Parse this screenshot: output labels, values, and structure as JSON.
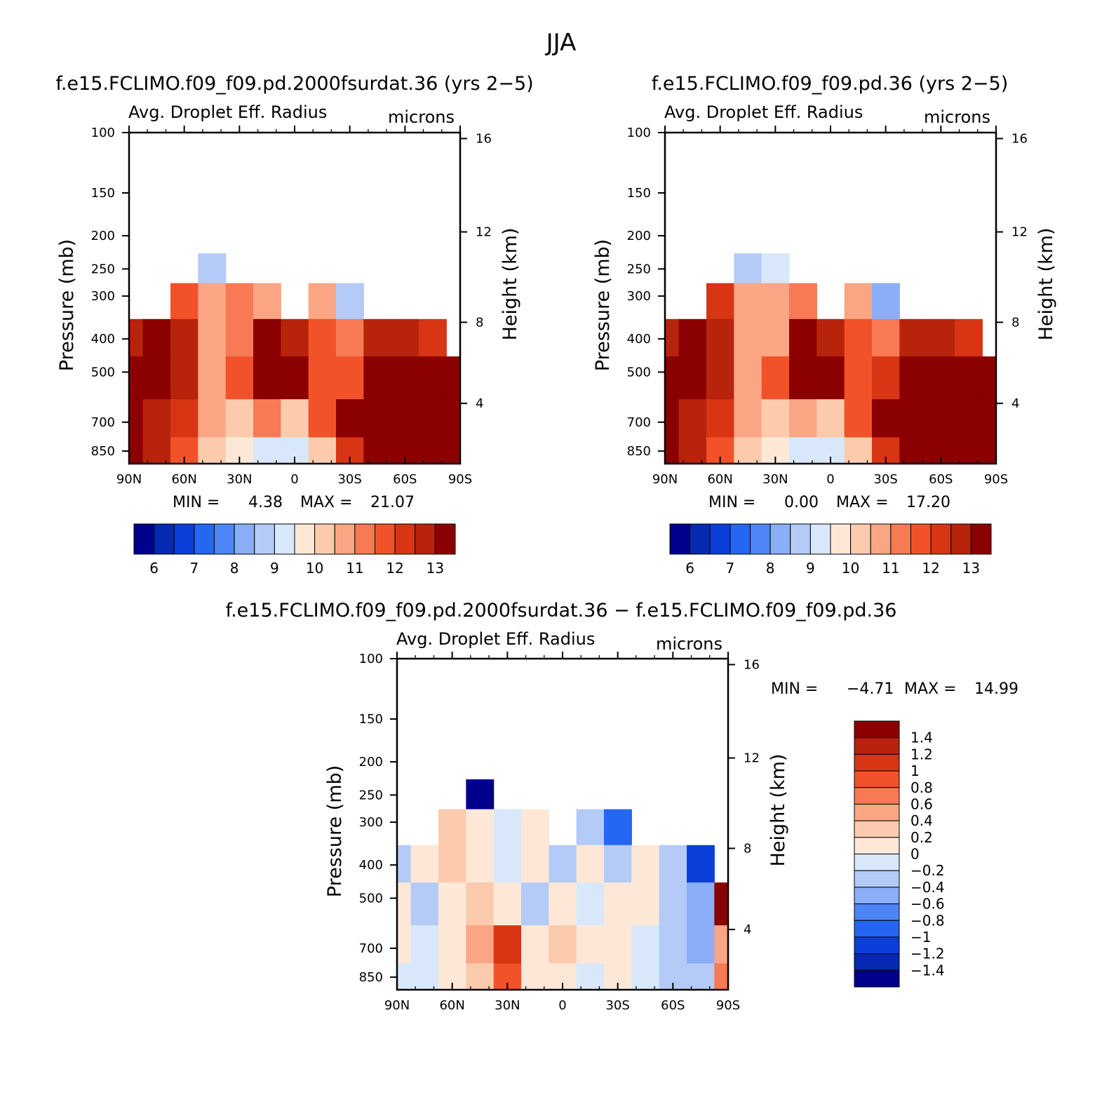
{
  "figure_title": "JJA",
  "colors": {
    "abs_scale": [
      "#00008c",
      "#0529b0",
      "#0c3fd9",
      "#2566f2",
      "#4d85f7",
      "#8aaef7",
      "#b4cbf8",
      "#d8e8fa",
      "#fde8d8",
      "#fccbae",
      "#faa684",
      "#f77a55",
      "#f25229",
      "#d83515",
      "#b8230c",
      "#8b0000"
    ],
    "diff_scale": [
      "#00008c",
      "#0529b0",
      "#0c3fd9",
      "#2566f2",
      "#4d85f7",
      "#8aaef7",
      "#b4cbf8",
      "#d8e8fa",
      "#fde8d8",
      "#fccbae",
      "#faa684",
      "#f77a55",
      "#f25229",
      "#d83515",
      "#b8230c",
      "#8b0000"
    ]
  },
  "chart_data": [
    {
      "type": "heatmap",
      "id": "p1",
      "title": "f.e15.FCLIMO.f09_f09.pd.2000fsurdat.36 (yrs 2−5)",
      "subtitle": "Avg. Droplet Eff. Radius",
      "units": "microns",
      "xlabel": "",
      "ylabel": "Pressure (mb)",
      "y2label": "Height (km)",
      "xticks": [
        "90N",
        "60N",
        "30N",
        "0",
        "30S",
        "60S",
        "90S"
      ],
      "xlim": [
        90,
        -90
      ],
      "yticks": [
        "100",
        "150",
        "200",
        "250",
        "300",
        "400",
        "500",
        "700",
        "850"
      ],
      "y2ticks": [
        "16",
        "12",
        "8",
        "4"
      ],
      "ylim": [
        100,
        925
      ],
      "min_label": "MIN =",
      "min_value": "4.38",
      "max_label": "MAX =",
      "max_value": "21.07",
      "colorbar_labels": [
        "6",
        "7",
        "8",
        "9",
        "10",
        "11",
        "12",
        "13"
      ],
      "field": {
        "lat": [
          90,
          75,
          60,
          45,
          30,
          15,
          0,
          -15,
          -30,
          -45,
          -60,
          -75,
          -90
        ],
        "levels_mb": [
          250,
          300,
          400,
          500,
          700,
          850
        ],
        "values": [
          [
            null,
            null,
            null,
            8,
            null,
            null,
            null,
            null,
            null,
            null,
            null,
            null,
            null
          ],
          [
            null,
            null,
            11,
            10,
            10.5,
            10,
            null,
            10,
            8,
            null,
            null,
            null,
            null
          ],
          [
            12,
            12.5,
            12,
            10,
            10.5,
            12.5,
            12,
            11,
            10.5,
            12,
            12,
            11.5,
            null
          ],
          [
            13,
            13,
            12,
            10,
            11,
            12.5,
            12.5,
            11,
            11,
            13,
            13.5,
            13.5,
            13
          ],
          [
            13,
            12,
            11.5,
            10,
            9.5,
            10.5,
            9.5,
            11,
            12.5,
            13.5,
            13.5,
            13.5,
            13.5
          ],
          [
            13,
            12,
            11,
            9.5,
            9,
            8.5,
            8.5,
            9.5,
            11.5,
            13,
            13.5,
            13.5,
            13
          ]
        ]
      }
    },
    {
      "type": "heatmap",
      "id": "p2",
      "title": "f.e15.FCLIMO.f09_f09.pd.36 (yrs 2−5)",
      "subtitle": "Avg. Droplet Eff. Radius",
      "units": "microns",
      "xlabel": "",
      "ylabel": "Pressure (mb)",
      "y2label": "Height (km)",
      "xticks": [
        "90N",
        "60N",
        "30N",
        "0",
        "30S",
        "60S",
        "90S"
      ],
      "xlim": [
        90,
        -90
      ],
      "yticks": [
        "100",
        "150",
        "200",
        "250",
        "300",
        "400",
        "500",
        "700",
        "850"
      ],
      "y2ticks": [
        "16",
        "12",
        "8",
        "4"
      ],
      "ylim": [
        100,
        925
      ],
      "min_label": "MIN =",
      "min_value": "0.00",
      "max_label": "MAX =",
      "max_value": "17.20",
      "colorbar_labels": [
        "6",
        "7",
        "8",
        "9",
        "10",
        "11",
        "12",
        "13"
      ],
      "field": {
        "lat": [
          90,
          75,
          60,
          45,
          30,
          15,
          0,
          -15,
          -30,
          -45,
          -60,
          -75,
          -90
        ],
        "levels_mb": [
          250,
          300,
          400,
          500,
          700,
          850
        ],
        "values": [
          [
            null,
            null,
            null,
            8,
            8.5,
            null,
            null,
            null,
            null,
            null,
            null,
            null,
            null
          ],
          [
            null,
            null,
            11.5,
            10,
            10,
            10.5,
            null,
            10,
            7.5,
            null,
            null,
            null,
            null
          ],
          [
            12,
            12.5,
            12,
            10,
            10,
            12.5,
            12,
            11,
            10.5,
            12,
            12,
            11.5,
            null
          ],
          [
            13,
            13,
            12,
            10,
            11,
            12.5,
            12.5,
            11,
            11.5,
            13,
            13.5,
            13.5,
            13
          ],
          [
            13,
            12,
            11.5,
            10,
            9.5,
            10,
            9.5,
            11,
            12.5,
            13.5,
            13.5,
            13.5,
            13.5
          ],
          [
            13,
            12,
            11,
            9.5,
            9,
            8.5,
            8.5,
            9.5,
            11.5,
            13,
            13.5,
            13.5,
            13
          ]
        ]
      }
    },
    {
      "type": "heatmap",
      "id": "p3",
      "title": "f.e15.FCLIMO.f09_f09.pd.2000fsurdat.36 − f.e15.FCLIMO.f09_f09.pd.36",
      "subtitle": "Avg. Droplet Eff. Radius",
      "units": "microns",
      "xlabel": "",
      "ylabel": "Pressure (mb)",
      "y2label": "Height (km)",
      "xticks": [
        "90N",
        "60N",
        "30N",
        "0",
        "30S",
        "60S",
        "90S"
      ],
      "xlim": [
        90,
        -90
      ],
      "yticks": [
        "100",
        "150",
        "200",
        "250",
        "300",
        "400",
        "500",
        "700",
        "850"
      ],
      "y2ticks": [
        "16",
        "12",
        "8",
        "4"
      ],
      "ylim": [
        100,
        925
      ],
      "min_label": "MIN =",
      "min_value": "−4.71",
      "max_label": "MAX =",
      "max_value": "14.99",
      "colorbar_labels": [
        "1.4",
        "1.2",
        "1",
        "0.8",
        "0.6",
        "0.4",
        "0.2",
        "0",
        "−0.2",
        "−0.4",
        "−0.6",
        "−0.8",
        "−1",
        "−1.2",
        "−1.4"
      ],
      "field": {
        "lat": [
          90,
          75,
          60,
          45,
          30,
          15,
          0,
          -15,
          -30,
          -45,
          -60,
          -75,
          -90
        ],
        "levels_mb": [
          250,
          300,
          400,
          500,
          700,
          850
        ],
        "values": [
          [
            null,
            null,
            null,
            -1.5,
            null,
            null,
            null,
            null,
            null,
            null,
            null,
            null,
            null
          ],
          [
            null,
            null,
            0.3,
            0.2,
            -0.1,
            0.1,
            null,
            -0.3,
            -0.8,
            null,
            null,
            null,
            null
          ],
          [
            -0.3,
            0.1,
            0.3,
            0.2,
            -0.1,
            0.1,
            -0.2,
            0.1,
            -0.2,
            0.1,
            -0.3,
            -1.0,
            null
          ],
          [
            0.1,
            -0.2,
            0.2,
            0.3,
            0.1,
            -0.2,
            0.2,
            -0.1,
            0.1,
            0.1,
            -0.3,
            -0.5,
            1.5
          ],
          [
            0.2,
            -0.1,
            0.1,
            0.5,
            1.2,
            0.2,
            0.3,
            0.1,
            0.1,
            -0.1,
            -0.3,
            -0.4,
            0.5
          ],
          [
            -0.1,
            -0.1,
            0.1,
            0.3,
            0.8,
            0.1,
            0.1,
            -0.1,
            0.1,
            -0.1,
            -0.3,
            -0.2,
            0.6
          ]
        ]
      }
    }
  ]
}
